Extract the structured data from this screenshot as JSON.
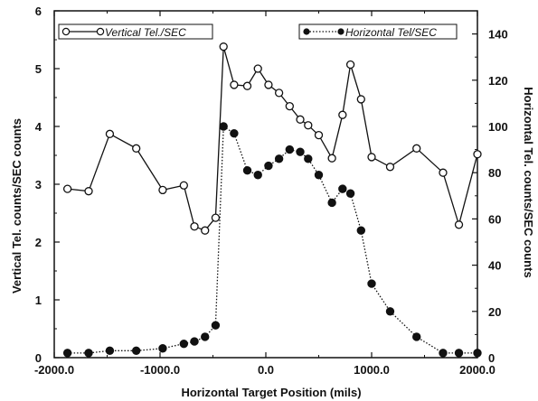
{
  "chart_data": {
    "type": "line",
    "title": "",
    "xlabel": "Horizontal Target Position (mils)",
    "ylabel_left": "Vertical Tel. counts/SEC counts",
    "ylabel_right": "Horizontal Tel. counts/SEC counts",
    "xlim": [
      -2000,
      2000
    ],
    "ylim_left": [
      0,
      6
    ],
    "ylim_right": [
      0,
      150
    ],
    "x_ticks": [
      -2000,
      -1000,
      0,
      1000,
      2000
    ],
    "x_tick_labels": [
      "-2000.0",
      "-1000.0",
      "0.0",
      "1000.0",
      "2000.0"
    ],
    "y_left_ticks": [
      0,
      1,
      2,
      3,
      4,
      5,
      6
    ],
    "y_left_tick_labels": [
      "0",
      "1",
      "2",
      "3",
      "4",
      "5",
      "6"
    ],
    "y_right_ticks": [
      0,
      20,
      40,
      60,
      80,
      100,
      120,
      140
    ],
    "y_right_tick_labels": [
      "0",
      "20",
      "40",
      "60",
      "80",
      "100",
      "120",
      "140"
    ],
    "grid": false,
    "legend_placement": "top",
    "series": [
      {
        "name": "Vertical Tel./SEC",
        "axis": "left",
        "marker": "open-circle",
        "line": "solid",
        "x": [
          -1875,
          -1675,
          -1475,
          -1225,
          -975,
          -775,
          -675,
          -575,
          -475,
          -400,
          -300,
          -175,
          -75,
          25,
          125,
          225,
          325,
          400,
          500,
          625,
          725,
          800,
          900,
          1000,
          1175,
          1425,
          1675,
          1825,
          2000
        ],
        "y": [
          2.92,
          2.88,
          3.87,
          3.62,
          2.9,
          2.98,
          2.27,
          2.2,
          2.42,
          5.38,
          4.72,
          4.7,
          5.0,
          4.72,
          4.58,
          4.35,
          4.12,
          4.02,
          3.85,
          3.45,
          4.2,
          5.07,
          4.47,
          3.47,
          3.3,
          3.62,
          3.2,
          2.3,
          3.52
        ]
      },
      {
        "name": "Horizontal Tel/SEC",
        "axis": "right",
        "marker": "filled-circle",
        "line": "dotted",
        "x": [
          -1875,
          -1675,
          -1475,
          -1225,
          -975,
          -775,
          -675,
          -575,
          -475,
          -400,
          -300,
          -175,
          -75,
          25,
          125,
          225,
          325,
          400,
          500,
          625,
          725,
          800,
          900,
          1000,
          1175,
          1425,
          1675,
          1825,
          2000
        ],
        "y": [
          2,
          2,
          3,
          3,
          4,
          6,
          7,
          9,
          14,
          100,
          97,
          81,
          79,
          83,
          86,
          90,
          89,
          86,
          79,
          67,
          73,
          71,
          55,
          32,
          20,
          9,
          2,
          2,
          2
        ]
      }
    ]
  }
}
